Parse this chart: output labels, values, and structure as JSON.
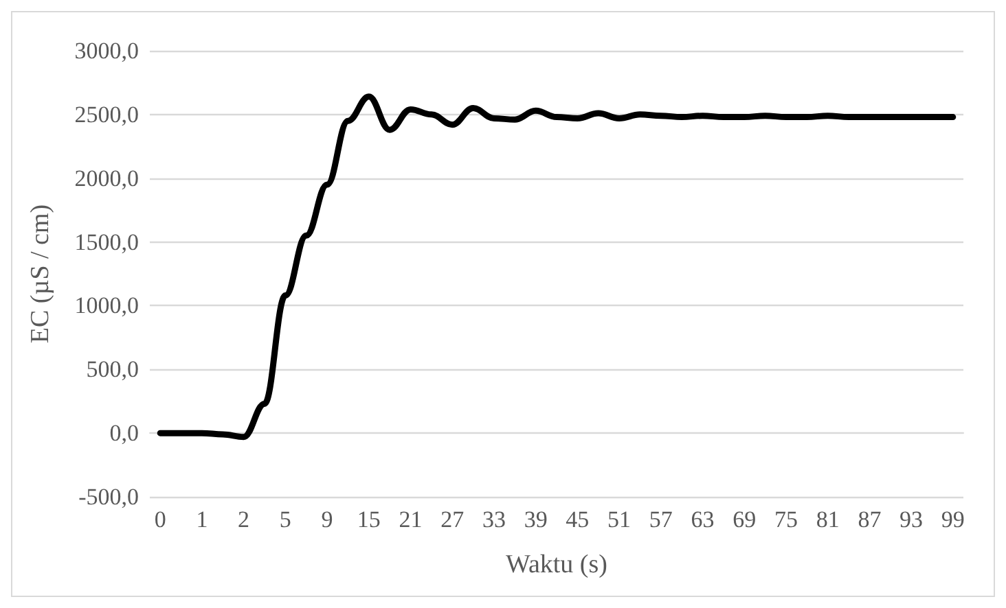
{
  "chart_data": {
    "type": "line",
    "xlabel": "Waktu (s)",
    "ylabel": "EC (µS / cm)",
    "categories": [
      "0",
      null,
      "1",
      null,
      "2",
      null,
      "5",
      null,
      "9",
      null,
      "15",
      null,
      "21",
      null,
      "27",
      null,
      "33",
      null,
      "39",
      null,
      "45",
      null,
      "51",
      null,
      "57",
      null,
      "63",
      null,
      "69",
      null,
      "75",
      null,
      "81",
      null,
      "87",
      null,
      "93",
      null,
      "99"
    ],
    "series": [
      {
        "color": "#000000",
        "values": [
          0,
          0,
          0,
          -10,
          -30,
          230,
          1080,
          1550,
          1950,
          2450,
          2640,
          2380,
          2540,
          2500,
          2420,
          2550,
          2470,
          2460,
          2530,
          2480,
          2470,
          2510,
          2470,
          2500,
          2490,
          2480,
          2490,
          2480,
          2480,
          2490,
          2480,
          2480,
          2490,
          2480,
          2480,
          2480,
          2480,
          2480,
          2480
        ]
      }
    ],
    "ylim": [
      -500,
      3000
    ],
    "yticks": [
      {
        "value": -500,
        "label": "-500,0"
      },
      {
        "value": 0,
        "label": "0,0"
      },
      {
        "value": 500,
        "label": "500,0"
      },
      {
        "value": 1000,
        "label": "1000,0"
      },
      {
        "value": 1500,
        "label": "1500,0"
      },
      {
        "value": 2000,
        "label": "2000,0"
      },
      {
        "value": 2500,
        "label": "2500,0"
      },
      {
        "value": 3000,
        "label": "3000,0"
      }
    ],
    "grid": "y",
    "marker": "none",
    "line_style": "solid"
  }
}
